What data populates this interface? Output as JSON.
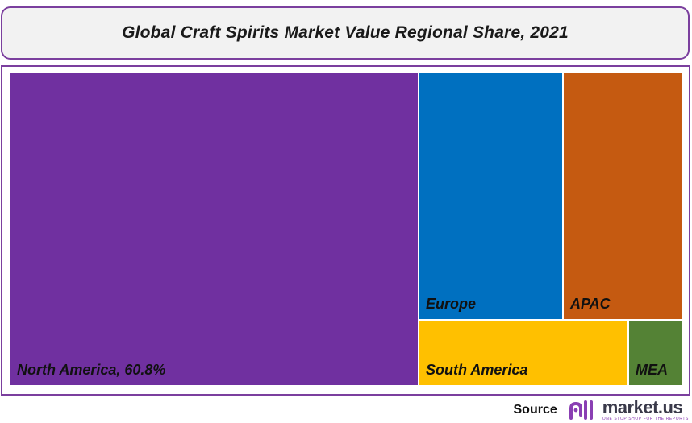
{
  "title": "Global Craft Spirits Market Value Regional Share, 2021",
  "chart_data": {
    "type": "treemap",
    "title": "Global Craft Spirits Market Value Regional Share, 2021",
    "tiles": [
      {
        "name": "North America",
        "label": "North America, 60.8%",
        "value": 60.8,
        "color": "#7030a0"
      },
      {
        "name": "Europe",
        "label": "Europe",
        "value": 13.5,
        "color": "#0070c0"
      },
      {
        "name": "APAC",
        "label": "APAC",
        "value": 11.8,
        "color": "#c55a11"
      },
      {
        "name": "South America",
        "label": "South America",
        "value": 10.3,
        "color": "#ffc000"
      },
      {
        "name": "MEA",
        "label": "MEA",
        "value": 2.6,
        "color": "#548235"
      }
    ]
  },
  "source": {
    "label": "Source",
    "logo_text": "market.us",
    "logo_tagline": "ONE STOP SHOP FOR THE REPORTS",
    "logo_icon": "market-us-logo-icon",
    "logo_color": "#8a3fb3"
  }
}
